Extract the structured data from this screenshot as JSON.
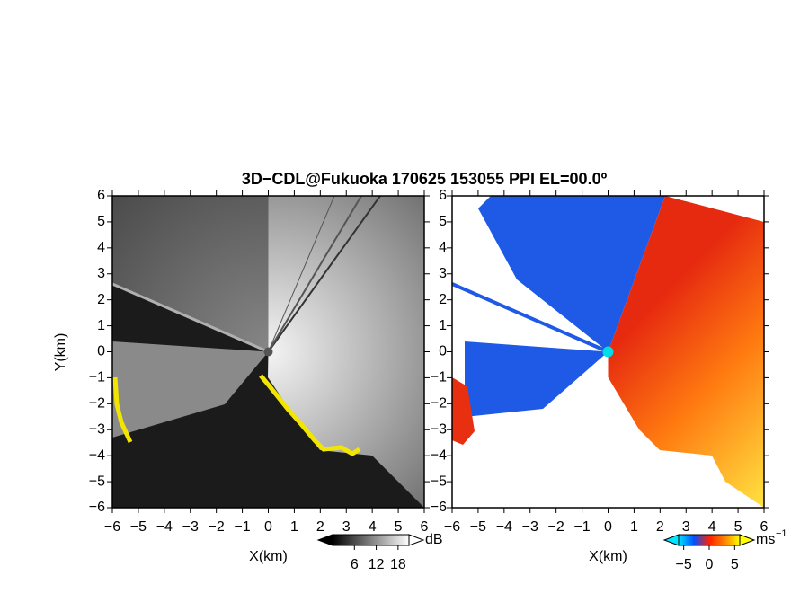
{
  "chart_data": [
    {
      "type": "radar-ppi",
      "title": "3D−CDL@Fukuoka 170625 153055 PPI EL=00.0º",
      "xlabel": "X(km)",
      "ylabel": "Y(km)",
      "xlim": [
        -6,
        6
      ],
      "ylim": [
        -6,
        6
      ],
      "xticks": [
        {
          "value": -6,
          "label": "−6"
        },
        {
          "value": -5,
          "label": "−5"
        },
        {
          "value": -4,
          "label": "−4"
        },
        {
          "value": -3,
          "label": "−3"
        },
        {
          "value": -2,
          "label": "−2"
        },
        {
          "value": -1,
          "label": "−1"
        },
        0,
        1,
        2,
        3,
        4,
        5,
        6
      ],
      "yticks": [
        {
          "value": -6,
          "label": "−6"
        },
        {
          "value": -5,
          "label": "−5"
        },
        {
          "value": -4,
          "label": "−4"
        },
        {
          "value": -3,
          "label": "−3"
        },
        {
          "value": -2,
          "label": "−2"
        },
        {
          "value": -1,
          "label": "−1"
        },
        0,
        1,
        2,
        3,
        4,
        5,
        6
      ],
      "grid": false,
      "colorbar": {
        "clim": [
          0,
          21
        ],
        "ticks": [
          6,
          12,
          18
        ],
        "unit": "dB",
        "colors": [
          "#000000",
          "#808080",
          "#ffffff"
        ]
      }
    },
    {
      "type": "radar-ppi",
      "xlabel": "X(km)",
      "xlim": [
        -6,
        6
      ],
      "ylim": [
        -6,
        6
      ],
      "xticks": [
        {
          "value": -6,
          "label": "−6"
        },
        {
          "value": -5,
          "label": "−5"
        },
        {
          "value": -4,
          "label": "−4"
        },
        {
          "value": -3,
          "label": "−3"
        },
        {
          "value": -2,
          "label": "−2"
        },
        {
          "value": -1,
          "label": "−1"
        },
        0,
        1,
        2,
        3,
        4,
        5,
        6
      ],
      "yticks": [
        {
          "value": -6,
          "label": "−6"
        },
        {
          "value": -5,
          "label": "−5"
        },
        {
          "value": -4,
          "label": "−4"
        },
        {
          "value": -3,
          "label": "−3"
        },
        {
          "value": -2,
          "label": "−2"
        },
        {
          "value": -1,
          "label": "−1"
        },
        0,
        1,
        2,
        3,
        4,
        5,
        6
      ],
      "grid": false,
      "colorbar": {
        "clim": [
          -6,
          6
        ],
        "ticks": [
          {
            "value": -5,
            "label": "−5"
          },
          0,
          5
        ],
        "unit": "ms",
        "unit_exponent": "−1",
        "colors": [
          "#00e5ff",
          "#0050ff",
          "#ff2000",
          "#ff8000",
          "#ffff00"
        ]
      }
    }
  ]
}
